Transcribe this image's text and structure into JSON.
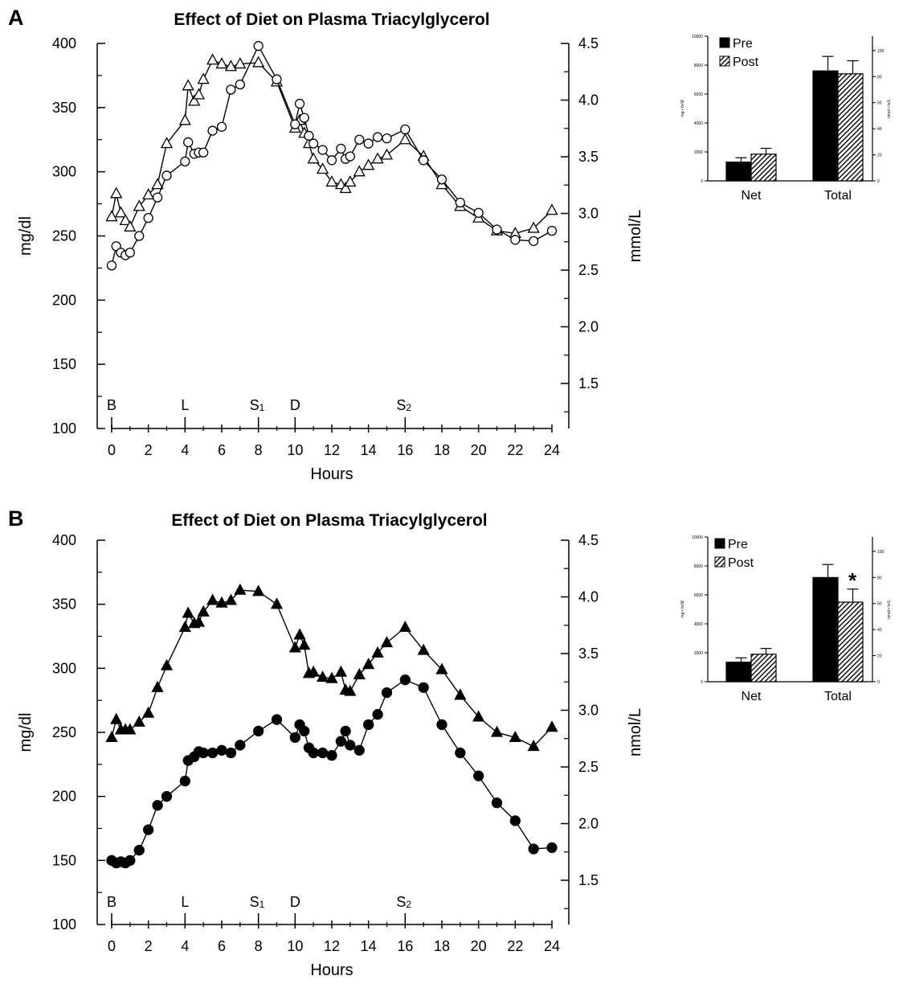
{
  "chart_data": [
    {
      "type": "line",
      "panel": "A",
      "title": "Effect of Diet on Plasma Triacylglycerol",
      "xlabel": "Hours",
      "ylabel": "mg/dl",
      "y2label": "mmol/L",
      "xlim": [
        0,
        24
      ],
      "ylim": [
        100,
        400
      ],
      "x_ticks": [
        "0",
        "2",
        "4",
        "6",
        "8",
        "10",
        "12",
        "14",
        "16",
        "18",
        "20",
        "22",
        "24"
      ],
      "y_ticks": [
        "100",
        "150",
        "200",
        "250",
        "300",
        "350",
        "400"
      ],
      "y2_ticks": [
        "1.5",
        "2.0",
        "2.5",
        "3.0",
        "3.5",
        "4.0",
        "4.5"
      ],
      "meals": [
        {
          "label": "B",
          "x": 0
        },
        {
          "label": "L",
          "x": 4
        },
        {
          "label": "S",
          "sub": "1",
          "x": 8
        },
        {
          "label": "D",
          "x": 10
        },
        {
          "label": "S",
          "sub": "2",
          "x": 16
        }
      ],
      "series": [
        {
          "marker": "triangle-open",
          "x": [
            0,
            0.25,
            0.5,
            0.75,
            1,
            1.5,
            2,
            2.5,
            3,
            4,
            4.17,
            4.5,
            4.75,
            5,
            5.5,
            6,
            6.5,
            7,
            8,
            9,
            10,
            10.25,
            10.5,
            10.75,
            11,
            11.5,
            12,
            12.5,
            12.75,
            13,
            13.5,
            14,
            14.5,
            15,
            16,
            17,
            18,
            19,
            20,
            21,
            22,
            23,
            24
          ],
          "y": [
            265,
            283,
            268,
            262,
            257,
            273,
            282,
            290,
            322,
            340,
            367,
            355,
            360,
            372,
            387,
            384,
            382,
            384,
            385,
            370,
            334,
            340,
            330,
            322,
            310,
            302,
            292,
            290,
            287,
            292,
            300,
            305,
            310,
            313,
            325,
            312,
            290,
            273,
            264,
            254,
            252,
            256,
            270
          ]
        },
        {
          "marker": "circle-open",
          "x": [
            0,
            0.25,
            0.5,
            0.75,
            1,
            1.5,
            2,
            2.5,
            3,
            4,
            4.17,
            4.5,
            4.75,
            5,
            5.5,
            6,
            6.5,
            7,
            8,
            9,
            10,
            10.25,
            10.5,
            10.75,
            11,
            11.5,
            12,
            12.5,
            12.75,
            13,
            13.5,
            14,
            14.5,
            15,
            16,
            17,
            18,
            19,
            20,
            21,
            22,
            23,
            24
          ],
          "y": [
            227,
            242,
            237,
            235,
            237,
            250,
            264,
            280,
            297,
            308,
            323,
            314,
            315,
            315,
            332,
            335,
            364,
            368,
            398,
            372,
            337,
            353,
            342,
            328,
            322,
            317,
            309,
            318,
            310,
            312,
            325,
            322,
            327,
            326,
            333,
            309,
            294,
            276,
            268,
            255,
            247,
            246,
            254
          ]
        }
      ]
    },
    {
      "type": "line",
      "panel": "B",
      "title": "Effect of Diet on Plasma Triacylglycerol",
      "xlabel": "Hours",
      "ylabel": "mg/dl",
      "y2label": "nmol/L",
      "xlim": [
        0,
        24
      ],
      "ylim": [
        100,
        400
      ],
      "x_ticks": [
        "0",
        "2",
        "4",
        "6",
        "8",
        "10",
        "12",
        "14",
        "16",
        "18",
        "20",
        "22",
        "24"
      ],
      "y_ticks": [
        "100",
        "150",
        "200",
        "250",
        "300",
        "350",
        "400"
      ],
      "y2_ticks": [
        "1.5",
        "2.0",
        "2.5",
        "3.0",
        "3.5",
        "4.0",
        "4.5"
      ],
      "meals": [
        {
          "label": "B",
          "x": 0
        },
        {
          "label": "L",
          "x": 4
        },
        {
          "label": "S",
          "sub": "1",
          "x": 8
        },
        {
          "label": "D",
          "x": 10
        },
        {
          "label": "S",
          "sub": "2",
          "x": 16
        }
      ],
      "series": [
        {
          "marker": "triangle-filled",
          "x": [
            0,
            0.25,
            0.5,
            0.75,
            1,
            1.5,
            2,
            2.5,
            3,
            4,
            4.17,
            4.5,
            4.75,
            5,
            5.5,
            6,
            6.5,
            7,
            8,
            9,
            10,
            10.25,
            10.5,
            10.75,
            11,
            11.5,
            12,
            12.5,
            12.75,
            13,
            13.5,
            14,
            14.5,
            15,
            16,
            17,
            18,
            19,
            20,
            21,
            22,
            23,
            24
          ],
          "y": [
            246,
            260,
            252,
            252,
            252,
            258,
            265,
            285,
            302,
            332,
            343,
            335,
            336,
            344,
            353,
            351,
            353,
            361,
            360,
            350,
            316,
            326,
            318,
            296,
            297,
            293,
            292,
            297,
            283,
            282,
            295,
            303,
            312,
            320,
            332,
            314,
            299,
            279,
            262,
            250,
            246,
            239,
            254
          ]
        },
        {
          "marker": "circle-filled",
          "x": [
            0,
            0.25,
            0.5,
            0.75,
            1,
            1.5,
            2,
            2.5,
            3,
            4,
            4.17,
            4.5,
            4.75,
            5,
            5.5,
            6,
            6.5,
            7,
            8,
            9,
            10,
            10.25,
            10.5,
            10.75,
            11,
            11.5,
            12,
            12.5,
            12.75,
            13,
            13.5,
            14,
            14.5,
            15,
            16,
            17,
            18,
            19,
            20,
            21,
            22,
            23,
            24
          ],
          "y": [
            150,
            148,
            149,
            148,
            150,
            158,
            174,
            193,
            200,
            212,
            228,
            231,
            235,
            234,
            234,
            236,
            234,
            240,
            251,
            260,
            246,
            256,
            251,
            238,
            234,
            234,
            232,
            243,
            251,
            240,
            236,
            256,
            264,
            281,
            291,
            285,
            256,
            234,
            216,
            195,
            181,
            159,
            160
          ]
        }
      ]
    },
    {
      "type": "bar",
      "panel": "A-inset",
      "categories": [
        "Net",
        "Total"
      ],
      "ylabel": "mg • hr/dl",
      "y2label": "nmol • hr/L",
      "ylim": [
        0,
        10000
      ],
      "y_ticks": [
        "0",
        "2000",
        "4000",
        "6000",
        "8000",
        "10000"
      ],
      "y2_ticks": [
        "0",
        "20",
        "40",
        "60",
        "80",
        "100"
      ],
      "legend": [
        "Pre",
        "Post"
      ],
      "series": [
        {
          "name": "Pre",
          "fill": "solid",
          "values": [
            1300,
            7600
          ],
          "errors": [
            300,
            1000
          ]
        },
        {
          "name": "Post",
          "fill": "hatched",
          "values": [
            1850,
            7400
          ],
          "errors": [
            400,
            900
          ]
        }
      ]
    },
    {
      "type": "bar",
      "panel": "B-inset",
      "categories": [
        "Net",
        "Total"
      ],
      "ylabel": "mg • hr/dl",
      "y2label": "nmol • hr/L",
      "ylim": [
        0,
        10000
      ],
      "y_ticks": [
        "0",
        "2000",
        "4000",
        "6000",
        "8000",
        "10000"
      ],
      "y2_ticks": [
        "0",
        "20",
        "40",
        "60",
        "80",
        "100"
      ],
      "legend": [
        "Pre",
        "Post"
      ],
      "annotation": "*",
      "series": [
        {
          "name": "Pre",
          "fill": "solid",
          "values": [
            1350,
            7200
          ],
          "errors": [
            300,
            900
          ]
        },
        {
          "name": "Post",
          "fill": "hatched",
          "values": [
            1900,
            5500
          ],
          "errors": [
            400,
            900
          ]
        }
      ]
    }
  ]
}
